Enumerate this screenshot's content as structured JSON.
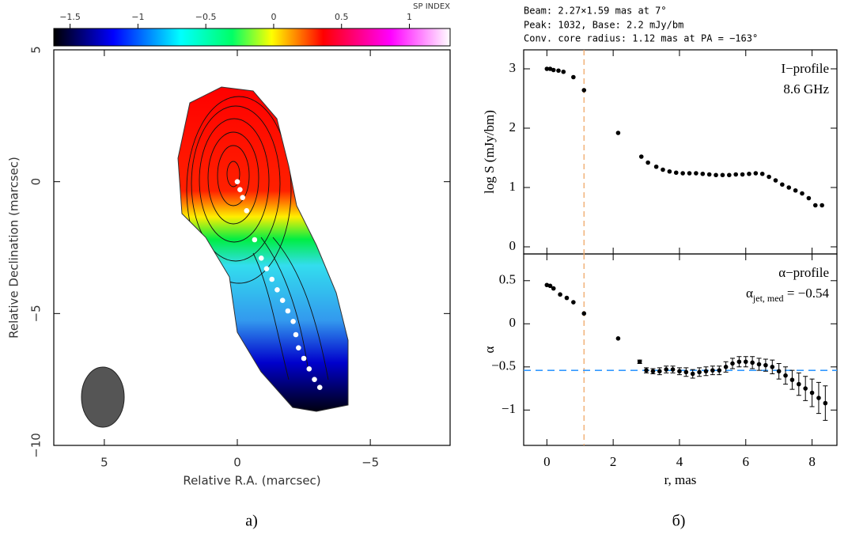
{
  "header": {
    "lines": [
      "Beam: 2.27×1.59 mas at 7°",
      "Peak: 1032, Base: 2.2 mJy/bm",
      "Conv. core radius: 1.12 mas at PA = −163°"
    ]
  },
  "captions": [
    "а)",
    "б)"
  ],
  "chart_data": [
    {
      "type": "map",
      "xlabel": "Relative R.A. (marcsec)",
      "ylabel": "Relative Declination (marcsec)",
      "xlim": [
        6.9,
        -8
      ],
      "ylim": [
        -10,
        5
      ],
      "xticks": [
        5,
        0,
        {
          "value": -5,
          "label": "−5"
        }
      ],
      "yticks": [
        5,
        0,
        {
          "value": -5,
          "label": "−5"
        },
        {
          "value": -10,
          "label": "−10"
        }
      ],
      "colorbar_label": "SP INDEX",
      "clim": [
        -1.62,
        1.3
      ],
      "cticks": [
        {
          "value": -1.5,
          "label": "−1.5"
        },
        {
          "value": -1,
          "label": "−1"
        },
        {
          "value": -0.5,
          "label": "−0.5"
        },
        0,
        0.5,
        1
      ],
      "x": [
        0,
        -0.1,
        -0.2,
        -0.35,
        -0.65,
        -0.9,
        -1.1,
        -1.3,
        -1.5,
        -1.7,
        -1.9,
        -2.1,
        -2.2,
        -2.3,
        -2.5,
        -2.7,
        -2.9,
        -3.1
      ],
      "y": [
        0,
        -0.3,
        -0.6,
        -1.1,
        -2.2,
        -2.9,
        -3.3,
        -3.7,
        -4.1,
        -4.5,
        -4.9,
        -5.3,
        -5.8,
        -6.3,
        -6.7,
        -7.1,
        -7.5,
        -7.8
      ],
      "color": "#ffffff"
    },
    {
      "type": "scatter",
      "ylabel": "log S (mJy/bm)",
      "annotations": [
        "I−profile",
        "8.6 GHz"
      ],
      "xlim": [
        -0.7,
        8.75
      ],
      "ylim": [
        -0.12,
        3.32
      ],
      "xticks": [
        0,
        2,
        4,
        6,
        8
      ],
      "xtick_labels": false,
      "yticks": [
        0,
        1,
        2,
        3
      ],
      "vline": 1.12,
      "vline_color": "#f0a868",
      "x": [
        0,
        0.1,
        0.2,
        0.35,
        0.5,
        0.8,
        1.12,
        2.15,
        2.85,
        3.05,
        3.3,
        3.5,
        3.7,
        3.9,
        4.1,
        4.3,
        4.5,
        4.7,
        4.9,
        5.1,
        5.3,
        5.5,
        5.7,
        5.9,
        6.1,
        6.3,
        6.5,
        6.7,
        6.9,
        7.1,
        7.3,
        7.5,
        7.7,
        7.9,
        8.1,
        8.3
      ],
      "values": [
        3.0,
        3.0,
        2.98,
        2.97,
        2.95,
        2.86,
        2.64,
        1.92,
        1.52,
        1.42,
        1.35,
        1.3,
        1.27,
        1.25,
        1.24,
        1.24,
        1.24,
        1.23,
        1.22,
        1.21,
        1.21,
        1.21,
        1.22,
        1.22,
        1.23,
        1.24,
        1.23,
        1.18,
        1.12,
        1.05,
        1.0,
        0.95,
        0.9,
        0.82,
        0.7,
        0.7
      ],
      "color": "#000000"
    },
    {
      "type": "errorbar",
      "xlabel": "r, mas",
      "ylabel": "α",
      "annotations": [
        "α−profile",
        {
          "base": "α",
          "sub": "jet, med",
          "rest": " = −0.54"
        }
      ],
      "xlim": [
        -0.7,
        8.75
      ],
      "ylim": [
        -1.41,
        0.81
      ],
      "xticks": [
        0,
        2,
        4,
        6,
        8
      ],
      "xtick_labels": true,
      "yticks": [
        0.5,
        0,
        {
          "value": -0.5,
          "label": "−0.5"
        },
        {
          "value": -1,
          "label": "−1"
        }
      ],
      "vline": 1.12,
      "vline_color": "#f0a868",
      "hline": -0.54,
      "hline_color": "#3399ff",
      "x": [
        0,
        0.1,
        0.2,
        0.4,
        0.6,
        0.8,
        1.12,
        2.15,
        2.8,
        3.0,
        3.2,
        3.4,
        3.6,
        3.8,
        4.0,
        4.2,
        4.4,
        4.6,
        4.8,
        5.0,
        5.2,
        5.4,
        5.6,
        5.8,
        6.0,
        6.2,
        6.4,
        6.6,
        6.8,
        7.0,
        7.2,
        7.4,
        7.6,
        7.8,
        8.0,
        8.2,
        8.4
      ],
      "values": [
        0.45,
        0.44,
        0.41,
        0.34,
        0.3,
        0.25,
        0.12,
        -0.17,
        -0.44,
        -0.54,
        -0.55,
        -0.55,
        -0.53,
        -0.53,
        -0.55,
        -0.56,
        -0.58,
        -0.56,
        -0.55,
        -0.54,
        -0.54,
        -0.5,
        -0.46,
        -0.44,
        -0.44,
        -0.45,
        -0.47,
        -0.48,
        -0.5,
        -0.55,
        -0.6,
        -0.65,
        -0.7,
        -0.75,
        -0.8,
        -0.86,
        -0.92
      ],
      "errors": [
        0,
        0,
        0,
        0,
        0,
        0,
        0,
        0,
        0.02,
        0.03,
        0.03,
        0.04,
        0.04,
        0.04,
        0.04,
        0.05,
        0.05,
        0.05,
        0.05,
        0.05,
        0.05,
        0.06,
        0.06,
        0.06,
        0.06,
        0.07,
        0.07,
        0.07,
        0.08,
        0.09,
        0.1,
        0.11,
        0.13,
        0.14,
        0.16,
        0.18,
        0.2
      ],
      "color": "#000000"
    }
  ]
}
